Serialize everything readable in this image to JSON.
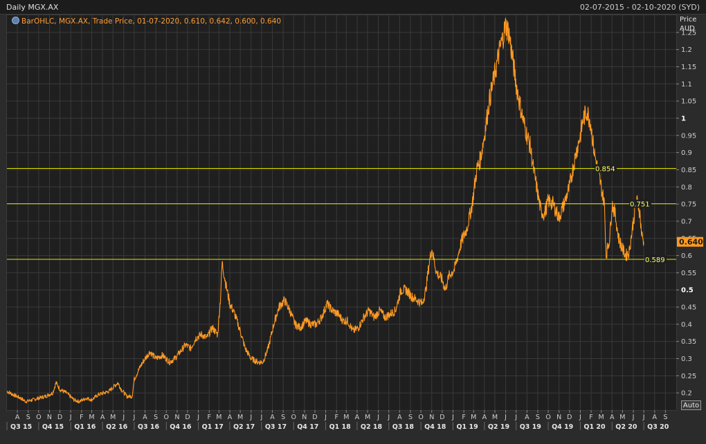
{
  "header": {
    "title": "Daily MGX.AX",
    "date_range": "02-07-2015 - 02-10-2020 (SYD)"
  },
  "legend": {
    "icon": "chart-settings-icon",
    "text": "BarOHLC, MGX.AX, Trade Price, 01-07-2020, 0.610, 0.642, 0.600, 0.640"
  },
  "axis": {
    "unit_line1": "Price",
    "unit_line2": "AUD",
    "auto_label": "Auto"
  },
  "colors": {
    "price_line": "#ff9a22",
    "horizontal_lines": "#e6e600",
    "last_price_badge": "#ff9a22",
    "grid": "#3a3a3a"
  },
  "chart_data": {
    "type": "line",
    "title": "Daily MGX.AX",
    "ylabel": "Price AUD",
    "x_range": [
      "2015-07-02",
      "2020-10-02"
    ],
    "ylim": [
      0.15,
      1.3
    ],
    "y_ticks": [
      "0.2",
      "0.25",
      "0.3",
      "0.35",
      "0.4",
      "0.45",
      "0.5",
      "0.55",
      "0.6",
      "0.65",
      "0.7",
      "0.75",
      "0.8",
      "0.85",
      "0.9",
      "0.95",
      "1",
      "1.05",
      "1.1",
      "1.15",
      "1.2",
      "1.25"
    ],
    "y_ticks_major": [
      "0.5",
      "1"
    ],
    "month_ticks": [
      "A",
      "S",
      "O",
      "N",
      "D",
      "J",
      "F",
      "M",
      "A",
      "M",
      "J",
      "J",
      "A",
      "S",
      "O",
      "N",
      "D",
      "J",
      "F",
      "M",
      "A",
      "M",
      "J",
      "J",
      "A",
      "S",
      "O",
      "N",
      "D",
      "J",
      "F",
      "M",
      "A",
      "M",
      "J",
      "J",
      "A",
      "S",
      "O",
      "N",
      "D",
      "J",
      "F",
      "M",
      "A",
      "M",
      "J",
      "J",
      "A",
      "S",
      "O",
      "N",
      "D",
      "J",
      "F",
      "M",
      "A",
      "M",
      "J",
      "J",
      "A",
      "S"
    ],
    "quarter_ticks": [
      "Q3 15",
      "Q4 15",
      "Q1 16",
      "Q2 16",
      "Q3 16",
      "Q4 16",
      "Q1 17",
      "Q2 17",
      "Q3 17",
      "Q4 17",
      "Q1 18",
      "Q2 18",
      "Q3 18",
      "Q4 18",
      "Q1 19",
      "Q2 19",
      "Q3 19",
      "Q4 19",
      "Q1 20",
      "Q2 20",
      "Q3 20"
    ],
    "grid": true,
    "last_price": "0.640",
    "horizontal_lines": [
      {
        "value": 0.854,
        "label": "0.854"
      },
      {
        "value": 0.751,
        "label": "0.751"
      },
      {
        "value": 0.589,
        "label": "0.589"
      }
    ],
    "series": [
      {
        "points": [
          [
            "2015-07-02",
            0.205
          ],
          [
            "2015-07-20",
            0.195
          ],
          [
            "2015-08-10",
            0.185
          ],
          [
            "2015-08-25",
            0.175
          ],
          [
            "2015-09-15",
            0.18
          ],
          [
            "2015-10-01",
            0.185
          ],
          [
            "2015-10-20",
            0.19
          ],
          [
            "2015-11-10",
            0.2
          ],
          [
            "2015-11-20",
            0.23
          ],
          [
            "2015-12-01",
            0.21
          ],
          [
            "2015-12-20",
            0.2
          ],
          [
            "2016-01-10",
            0.18
          ],
          [
            "2016-01-25",
            0.175
          ],
          [
            "2016-02-15",
            0.185
          ],
          [
            "2016-03-01",
            0.18
          ],
          [
            "2016-03-20",
            0.195
          ],
          [
            "2016-04-05",
            0.2
          ],
          [
            "2016-04-20",
            0.205
          ],
          [
            "2016-05-05",
            0.22
          ],
          [
            "2016-05-15",
            0.23
          ],
          [
            "2016-05-25",
            0.21
          ],
          [
            "2016-06-10",
            0.19
          ],
          [
            "2016-06-25",
            0.19
          ],
          [
            "2016-07-01",
            0.24
          ],
          [
            "2016-07-20",
            0.28
          ],
          [
            "2016-08-01",
            0.3
          ],
          [
            "2016-08-15",
            0.32
          ],
          [
            "2016-09-01",
            0.3
          ],
          [
            "2016-09-20",
            0.31
          ],
          [
            "2016-10-10",
            0.29
          ],
          [
            "2016-10-25",
            0.3
          ],
          [
            "2016-11-10",
            0.32
          ],
          [
            "2016-11-25",
            0.34
          ],
          [
            "2016-12-10",
            0.33
          ],
          [
            "2016-12-25",
            0.36
          ],
          [
            "2017-01-10",
            0.37
          ],
          [
            "2017-01-25",
            0.36
          ],
          [
            "2017-02-10",
            0.39
          ],
          [
            "2017-02-25",
            0.37
          ],
          [
            "2017-03-05",
            0.47
          ],
          [
            "2017-03-10",
            0.58
          ],
          [
            "2017-03-20",
            0.52
          ],
          [
            "2017-04-01",
            0.46
          ],
          [
            "2017-04-15",
            0.43
          ],
          [
            "2017-05-01",
            0.38
          ],
          [
            "2017-05-15",
            0.33
          ],
          [
            "2017-06-01",
            0.3
          ],
          [
            "2017-06-20",
            0.29
          ],
          [
            "2017-07-05",
            0.29
          ],
          [
            "2017-07-20",
            0.33
          ],
          [
            "2017-08-05",
            0.4
          ],
          [
            "2017-08-20",
            0.45
          ],
          [
            "2017-09-05",
            0.47
          ],
          [
            "2017-09-20",
            0.44
          ],
          [
            "2017-10-05",
            0.4
          ],
          [
            "2017-10-20",
            0.39
          ],
          [
            "2017-11-05",
            0.41
          ],
          [
            "2017-11-20",
            0.4
          ],
          [
            "2017-12-05",
            0.4
          ],
          [
            "2017-12-20",
            0.42
          ],
          [
            "2018-01-05",
            0.46
          ],
          [
            "2018-01-20",
            0.44
          ],
          [
            "2018-02-05",
            0.43
          ],
          [
            "2018-02-20",
            0.41
          ],
          [
            "2018-03-05",
            0.41
          ],
          [
            "2018-03-20",
            0.38
          ],
          [
            "2018-04-05",
            0.39
          ],
          [
            "2018-04-20",
            0.42
          ],
          [
            "2018-05-05",
            0.44
          ],
          [
            "2018-05-20",
            0.42
          ],
          [
            "2018-06-05",
            0.44
          ],
          [
            "2018-06-20",
            0.42
          ],
          [
            "2018-07-05",
            0.43
          ],
          [
            "2018-07-20",
            0.44
          ],
          [
            "2018-08-05",
            0.5
          ],
          [
            "2018-08-20",
            0.5
          ],
          [
            "2018-09-05",
            0.48
          ],
          [
            "2018-09-20",
            0.47
          ],
          [
            "2018-10-05",
            0.46
          ],
          [
            "2018-10-15",
            0.5
          ],
          [
            "2018-10-25",
            0.58
          ],
          [
            "2018-11-01",
            0.62
          ],
          [
            "2018-11-15",
            0.55
          ],
          [
            "2018-12-01",
            0.53
          ],
          [
            "2018-12-10",
            0.5
          ],
          [
            "2018-12-20",
            0.54
          ],
          [
            "2019-01-05",
            0.56
          ],
          [
            "2019-01-15",
            0.6
          ],
          [
            "2019-01-25",
            0.64
          ],
          [
            "2019-02-10",
            0.68
          ],
          [
            "2019-02-25",
            0.75
          ],
          [
            "2019-03-10",
            0.85
          ],
          [
            "2019-03-20",
            0.88
          ],
          [
            "2019-04-01",
            0.95
          ],
          [
            "2019-04-15",
            1.05
          ],
          [
            "2019-04-25",
            1.1
          ],
          [
            "2019-05-05",
            1.15
          ],
          [
            "2019-05-15",
            1.2
          ],
          [
            "2019-05-25",
            1.24
          ],
          [
            "2019-06-01",
            1.27
          ],
          [
            "2019-06-10",
            1.25
          ],
          [
            "2019-06-20",
            1.18
          ],
          [
            "2019-07-01",
            1.1
          ],
          [
            "2019-07-10",
            1.05
          ],
          [
            "2019-07-20",
            1.0
          ],
          [
            "2019-08-01",
            0.95
          ],
          [
            "2019-08-10",
            0.92
          ],
          [
            "2019-08-20",
            0.85
          ],
          [
            "2019-09-01",
            0.78
          ],
          [
            "2019-09-10",
            0.73
          ],
          [
            "2019-09-20",
            0.72
          ],
          [
            "2019-10-01",
            0.76
          ],
          [
            "2019-10-15",
            0.75
          ],
          [
            "2019-11-01",
            0.71
          ],
          [
            "2019-11-15",
            0.75
          ],
          [
            "2019-12-01",
            0.8
          ],
          [
            "2019-12-10",
            0.85
          ],
          [
            "2019-12-20",
            0.9
          ],
          [
            "2020-01-01",
            0.95
          ],
          [
            "2020-01-10",
            1.0
          ],
          [
            "2020-01-20",
            1.02
          ],
          [
            "2020-01-30",
            0.99
          ],
          [
            "2020-02-10",
            0.9
          ],
          [
            "2020-02-20",
            0.85
          ],
          [
            "2020-03-01",
            0.8
          ],
          [
            "2020-03-10",
            0.75
          ],
          [
            "2020-03-15",
            0.6
          ],
          [
            "2020-03-25",
            0.65
          ],
          [
            "2020-04-01",
            0.75
          ],
          [
            "2020-04-10",
            0.72
          ],
          [
            "2020-04-20",
            0.65
          ],
          [
            "2020-05-01",
            0.62
          ],
          [
            "2020-05-10",
            0.6
          ],
          [
            "2020-05-20",
            0.61
          ],
          [
            "2020-06-01",
            0.7
          ],
          [
            "2020-06-10",
            0.76
          ],
          [
            "2020-06-15",
            0.75
          ],
          [
            "2020-06-20",
            0.72
          ],
          [
            "2020-06-25",
            0.66
          ],
          [
            "2020-07-01",
            0.64
          ]
        ]
      }
    ]
  }
}
